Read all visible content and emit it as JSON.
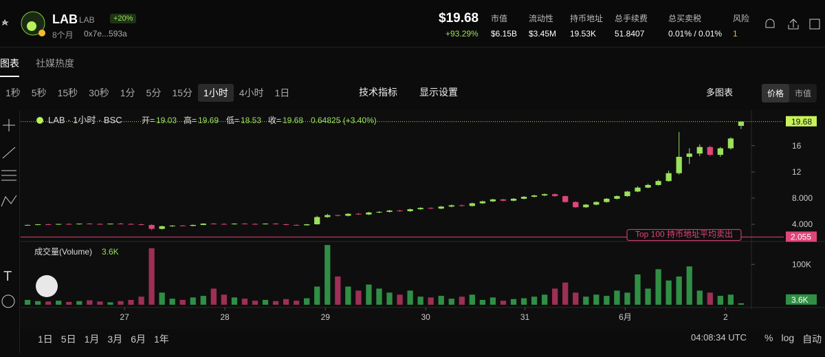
{
  "header": {
    "symbol": "LAB",
    "ticker": "LAB",
    "badge": "+20%",
    "age": "8个月",
    "address": "0x7e...593a",
    "price": "$19.68",
    "change": "+93.29%",
    "stats": [
      {
        "label": "市值",
        "value": "$6.15B"
      },
      {
        "label": "流动性",
        "value": "$3.45M"
      },
      {
        "label": "持币地址",
        "value": "19.53K"
      },
      {
        "label": "总手续费",
        "value": "51.8407"
      },
      {
        "label": "总买卖税",
        "value": "0.01% / 0.01%"
      },
      {
        "label": "风险",
        "value": "1"
      }
    ]
  },
  "tabs": [
    "图表",
    "社媒热度"
  ],
  "intervals": [
    "1秒",
    "5秒",
    "15秒",
    "30秒",
    "1分",
    "5分",
    "15分",
    "1小时",
    "4小时",
    "1日"
  ],
  "tools": [
    "技术指标",
    "显示设置"
  ],
  "multi_chart": "多图表",
  "modes": [
    "价格",
    "市值"
  ],
  "ranges": [
    "1日",
    "5日",
    "1月",
    "3月",
    "6月",
    "1年"
  ],
  "clock": "04:08:34 UTC",
  "scale_options": [
    "%",
    "log",
    "自动"
  ],
  "chart_data": {
    "type": "candlestick",
    "legend_title": "LAB · 1小时 · BSC",
    "ohlc_labels": [
      "开=",
      "高=",
      "低=",
      "收="
    ],
    "change_text": "0.64825 (+3.40%)",
    "volume_title": "成交量(Volume)",
    "volume_last_label": "3.6K",
    "annotation": "Top 100 持币地址平均卖出",
    "reference_line": 2.055,
    "up_color": "#9be15d",
    "down_color": "#e0457b",
    "volume_up_color": "#2f8f45",
    "volume_down_color": "#9e2f55",
    "open": [
      3.85,
      3.9,
      4.0,
      3.95,
      4.05,
      4.0,
      4.1,
      4.05,
      4.0,
      4.1,
      4.05,
      4.0,
      3.9,
      3.3,
      3.7,
      3.8,
      3.75,
      3.9,
      4.1,
      4.05,
      4.0,
      4.1,
      4.05,
      4.0,
      4.1,
      4.0,
      3.9,
      3.85,
      4.0,
      5.1,
      5.4,
      5.3,
      5.6,
      5.5,
      5.8,
      5.9,
      6.1,
      6.0,
      6.3,
      6.5,
      6.4,
      6.7,
      6.9,
      6.8,
      7.2,
      7.5,
      7.8,
      7.6,
      7.9,
      8.2,
      8.4,
      8.6,
      8.3,
      7.4,
      6.6,
      7.0,
      7.4,
      7.9,
      8.3,
      9.0,
      9.6,
      10.0,
      10.6,
      11.8,
      14.3,
      14.8,
      15.8,
      14.6,
      15.6,
      19.03
    ],
    "high": [
      3.95,
      4.05,
      4.1,
      4.05,
      4.15,
      4.1,
      4.2,
      4.15,
      4.1,
      4.2,
      4.15,
      4.1,
      4.0,
      3.8,
      3.85,
      3.9,
      3.95,
      4.15,
      4.2,
      4.15,
      4.15,
      4.2,
      4.15,
      4.15,
      4.2,
      4.1,
      4.0,
      4.05,
      5.3,
      5.6,
      5.5,
      5.7,
      5.75,
      5.9,
      6.0,
      6.2,
      6.2,
      6.4,
      6.6,
      6.6,
      6.8,
      7.0,
      7.0,
      7.3,
      7.6,
      7.9,
      7.9,
      8.0,
      8.3,
      8.5,
      8.7,
      8.7,
      8.4,
      7.5,
      7.1,
      7.5,
      8.0,
      8.4,
      9.1,
      9.8,
      10.2,
      10.8,
      12.2,
      18.1,
      15.6,
      16.2,
      16.0,
      15.8,
      17.3,
      19.69
    ],
    "low": [
      3.8,
      3.85,
      3.9,
      3.9,
      3.95,
      3.95,
      4.0,
      3.95,
      3.95,
      4.0,
      3.95,
      3.85,
      3.1,
      3.2,
      3.6,
      3.7,
      3.7,
      3.85,
      4.0,
      3.95,
      3.95,
      4.0,
      3.95,
      3.95,
      3.95,
      3.85,
      3.8,
      3.8,
      3.95,
      5.0,
      5.2,
      5.2,
      5.45,
      5.4,
      5.7,
      5.8,
      5.9,
      5.9,
      6.2,
      6.3,
      6.3,
      6.6,
      6.7,
      6.7,
      7.1,
      7.4,
      7.5,
      7.5,
      7.8,
      8.1,
      8.3,
      8.2,
      7.3,
      6.5,
      6.5,
      6.9,
      7.3,
      7.8,
      8.2,
      8.9,
      9.5,
      9.9,
      10.5,
      11.6,
      13.2,
      14.4,
      14.4,
      14.3,
      15.4,
      18.53
    ],
    "close": [
      3.9,
      4.0,
      3.95,
      4.05,
      4.0,
      4.1,
      4.05,
      4.0,
      4.1,
      4.05,
      4.0,
      3.9,
      3.3,
      3.7,
      3.8,
      3.75,
      3.9,
      4.1,
      4.05,
      4.0,
      4.1,
      4.05,
      4.0,
      4.1,
      4.0,
      3.9,
      3.85,
      4.0,
      5.1,
      5.4,
      5.3,
      5.6,
      5.5,
      5.8,
      5.9,
      6.1,
      6.0,
      6.3,
      6.5,
      6.4,
      6.7,
      6.9,
      6.8,
      7.2,
      7.5,
      7.8,
      7.6,
      7.9,
      8.2,
      8.4,
      8.6,
      8.3,
      7.4,
      6.6,
      7.0,
      7.4,
      7.9,
      8.3,
      9.0,
      9.6,
      10.0,
      10.6,
      11.8,
      14.3,
      14.8,
      15.8,
      14.6,
      15.6,
      17.1,
      19.68
    ],
    "volume": [
      12000,
      9000,
      8000,
      10000,
      7000,
      9000,
      11000,
      8000,
      6000,
      9000,
      12000,
      20000,
      140000,
      30000,
      15000,
      12000,
      18000,
      22000,
      40000,
      25000,
      18000,
      15000,
      10000,
      12000,
      9000,
      14000,
      10000,
      16000,
      45000,
      148000,
      70000,
      45000,
      35000,
      50000,
      40000,
      30000,
      25000,
      35000,
      20000,
      18000,
      22000,
      15000,
      20000,
      25000,
      12000,
      18000,
      10000,
      14000,
      16000,
      20000,
      25000,
      40000,
      55000,
      30000,
      20000,
      25000,
      22000,
      35000,
      30000,
      75000,
      40000,
      88000,
      60000,
      70000,
      95000,
      35000,
      30000,
      22000,
      25000,
      3600
    ],
    "xlim": [
      -0.67,
      69.67
    ],
    "xticks": [
      {
        "value": 9.375,
        "label": "27"
      },
      {
        "value": 19.08,
        "label": "28"
      },
      {
        "value": 28.8,
        "label": "29"
      },
      {
        "value": 38.5,
        "label": "30"
      },
      {
        "value": 48.1,
        "label": "31"
      },
      {
        "value": 57.8,
        "label": "6月"
      },
      {
        "value": 67.5,
        "label": "2"
      }
    ],
    "ylim": [
      1.8,
      20.6
    ],
    "yticks": [
      {
        "value": 4,
        "label": "4.000"
      },
      {
        "value": 8,
        "label": "8.000"
      },
      12,
      16
    ],
    "y2lim": [
      0,
      150000
    ],
    "y2ticks": [
      {
        "value": 100000,
        "label": "100K"
      }
    ]
  }
}
